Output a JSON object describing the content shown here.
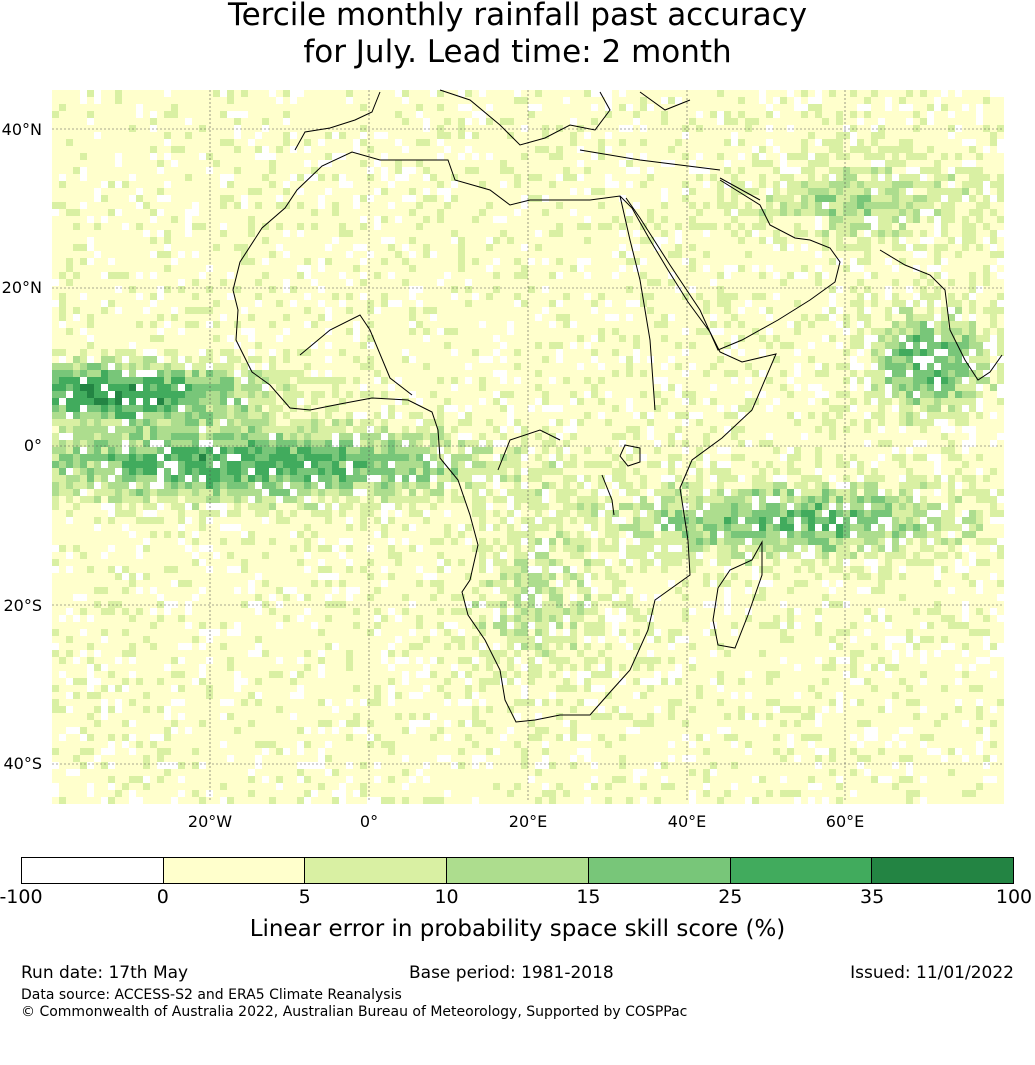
{
  "title_line1": "Tercile monthly rainfall past accuracy",
  "title_line2": "for July. Lead time: 2 month",
  "lat_labels": [
    "40°N",
    "20°N",
    "0°",
    "20°S",
    "40°S"
  ],
  "lon_labels": [
    "20°W",
    "0°",
    "20°E",
    "40°E",
    "60°E"
  ],
  "colorbar": {
    "ticks": [
      "-100",
      "0",
      "5",
      "10",
      "15",
      "25",
      "35",
      "100"
    ],
    "colors": [
      "#ffffff",
      "#ffffcc",
      "#d9f0a3",
      "#addd8e",
      "#78c679",
      "#41ab5d",
      "#238443"
    ],
    "label": "Linear error in probability space skill score (%)"
  },
  "footer": {
    "run_date": "Run date: 17th May",
    "base_period": "Base period: 1981-2018",
    "issued": "Issued: 11/01/2022",
    "data_source": "Data source: ACCESS-S2 and ERA5 Climate Reanalysis",
    "copyright": "© Commonwealth of Australia 2022, Australian Bureau of Meteorology, Supported by COSPPac"
  }
}
